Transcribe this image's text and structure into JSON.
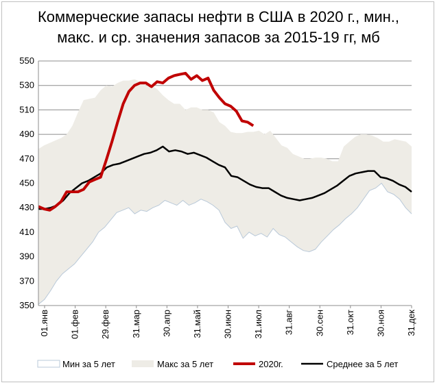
{
  "chart_data": {
    "type": "line",
    "title_line1": "Коммерческие запасы нефти в США в 2020 г., мин.,",
    "title_line2": "макс. и ср. значения запасов за 2015-19 гг, мб",
    "ylim": [
      350,
      550
    ],
    "yticks": [
      350,
      370,
      390,
      410,
      430,
      450,
      470,
      490,
      510,
      530,
      550
    ],
    "xticks": [
      "01.янв",
      "01.фев",
      "29.фев",
      "31.мар",
      "30.апр",
      "31.май",
      "30.июн",
      "31.июл",
      "31.авг",
      "30.сен",
      "31.окт",
      "30.ноя",
      "31.дек"
    ],
    "week_count": 52,
    "legend_position": "bottom",
    "colors": {
      "min": "#ffffff",
      "min_border": "#b8c8d8",
      "max": "#eeece6",
      "y2020": "#c00000",
      "avg": "#000000"
    },
    "series": [
      {
        "name": "Мин за 5 лет",
        "values": [
          351,
          355,
          362,
          370,
          376,
          380,
          384,
          390,
          396,
          402,
          410,
          414,
          420,
          426,
          428,
          430,
          425,
          428,
          427,
          430,
          432,
          436,
          434,
          432,
          436,
          432,
          434,
          437,
          435,
          432,
          428,
          418,
          413,
          415,
          405,
          410,
          407,
          409,
          406,
          413,
          408,
          406,
          402,
          398,
          395,
          394,
          396,
          402,
          407,
          412,
          416,
          421,
          425,
          430,
          437,
          444,
          446,
          450,
          443,
          441,
          437,
          430,
          425
        ]
      },
      {
        "name": "Макс за 5 лет",
        "values": [
          478,
          481,
          483,
          485,
          487,
          490,
          497,
          508,
          518,
          519,
          520,
          526,
          530,
          529,
          532,
          534,
          534,
          535,
          533,
          530,
          530,
          527,
          522,
          518,
          515,
          515,
          510,
          512,
          512,
          510,
          510,
          508,
          500,
          497,
          492,
          491,
          491,
          492,
          492,
          493,
          490,
          493,
          487,
          481,
          479,
          474,
          472,
          470,
          470,
          471,
          471,
          470,
          468,
          468,
          480,
          484,
          488,
          490,
          490,
          489,
          487,
          484,
          484,
          486,
          485,
          484,
          480
        ]
      },
      {
        "name": "2020г.",
        "values": [
          431,
          429,
          428,
          431,
          435,
          443,
          443,
          443,
          445,
          451,
          453,
          455,
          469,
          484,
          500,
          515,
          525,
          530,
          532,
          532,
          529,
          533,
          532,
          536,
          538,
          539,
          540,
          535,
          538,
          534,
          536,
          526,
          520,
          515,
          513,
          509,
          501,
          500,
          497
        ]
      },
      {
        "name": "Среднее за 5 лет",
        "values": [
          429,
          429,
          430,
          432,
          436,
          442,
          446,
          450,
          452,
          455,
          458,
          463,
          465,
          466,
          468,
          470,
          472,
          474,
          475,
          477,
          480,
          476,
          477,
          476,
          474,
          475,
          473,
          471,
          468,
          465,
          463,
          456,
          455,
          452,
          449,
          447,
          446,
          446,
          443,
          440,
          438,
          437,
          436,
          437,
          438,
          440,
          442,
          445,
          448,
          452,
          456,
          458,
          459,
          460,
          460,
          455,
          454,
          452,
          449,
          447,
          443
        ]
      }
    ]
  }
}
